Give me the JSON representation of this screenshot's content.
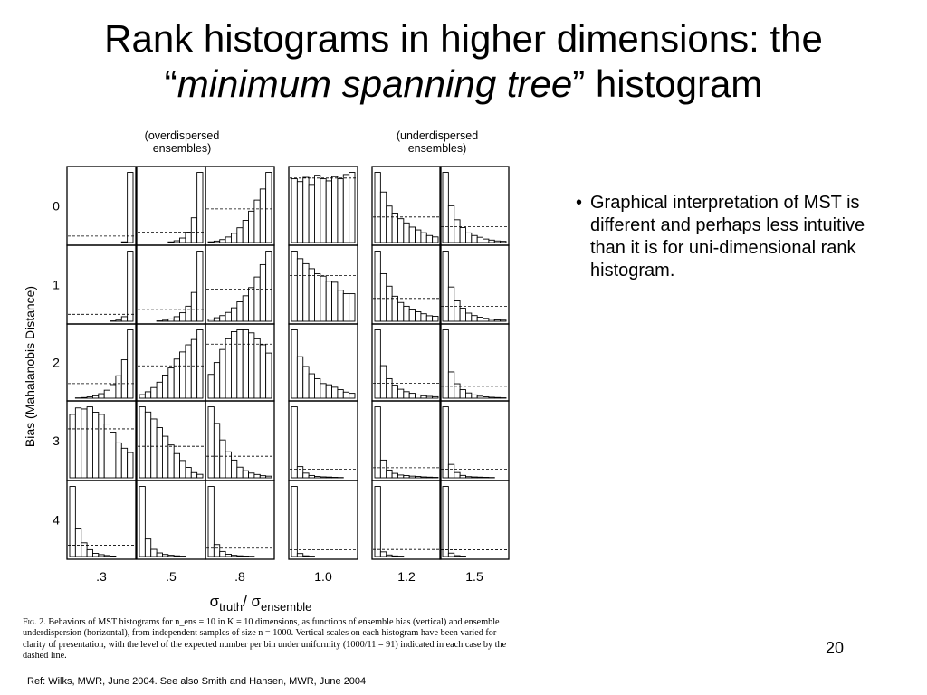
{
  "slide": {
    "title_line1": "Rank histograms in higher dimensions: the",
    "title_open_quote": "“",
    "title_italic": "minimum spanning tree",
    "title_close": "” histogram",
    "bullets": [
      "Graphical interpretation of MST is different and perhaps less intuitive than it is for uni-dimensional rank histogram."
    ],
    "page_number": "20",
    "reference": "Ref: Wilks, MWR, June 2004.  See also Smith and Hansen, MWR, June 2004"
  },
  "figure": {
    "label_overdispersed_1": "(overdispersed",
    "label_overdispersed_2": "ensembles)",
    "label_underdispersed_1": "(underdispersed",
    "label_underdispersed_2": "ensembles)",
    "ylabel": "Bias (Mahalanobis Distance)",
    "xlabel_sigma1": "σ",
    "xlabel_sub1": "truth",
    "xlabel_slash": "/ ",
    "xlabel_sigma2": "σ",
    "xlabel_sub2": "ensemble",
    "caption_fig": "Fig. 2.",
    "caption_text": " Behaviors of MST histograms for n_ens = 10 in K = 10 dimensions, as functions of ensemble bias (vertical) and ensemble underdispersion (horizontal), from independent samples of size n = 1000. Vertical scales on each histogram have been varied for clarity of presentation, with the level of the expected number per bin under uniformity (1000/11 = 91) indicated in each case by the dashed line."
  },
  "chart_data": {
    "type": "bar",
    "description_of_grid": "5 rows (bias) x 6 columns (dispersion ratio); each cell is an 11-bin MST rank histogram",
    "rows": [
      "0",
      "1",
      "2",
      "3",
      "4"
    ],
    "columns": [
      ".3",
      ".5",
      ".8",
      "1.0",
      "1.2",
      "1.5"
    ],
    "bins": 11,
    "expected_per_bin": 91,
    "panels": [
      [
        {
          "values": [
            0,
            0,
            0,
            0,
            0,
            0,
            0,
            0,
            2,
            10,
            988
          ],
          "dashed": 91
        },
        {
          "values": [
            0,
            0,
            0,
            0,
            2,
            6,
            16,
            40,
            92,
            220,
            624
          ],
          "dashed": 91
        },
        {
          "values": [
            2,
            4,
            8,
            15,
            25,
            40,
            60,
            85,
            115,
            145,
            190
          ],
          "dashed": 91
        },
        {
          "values": [
            90,
            86,
            92,
            82,
            95,
            90,
            87,
            93,
            90,
            96,
            99
          ],
          "dashed": 91
        },
        {
          "values": [
            250,
            180,
            130,
            105,
            85,
            70,
            55,
            45,
            35,
            25,
            20
          ],
          "dashed": 91
        },
        {
          "values": [
            400,
            210,
            130,
            85,
            55,
            40,
            30,
            20,
            14,
            9,
            7
          ],
          "dashed": 91
        }
      ],
      [
        {
          "values": [
            0,
            0,
            0,
            0,
            0,
            1,
            2,
            5,
            15,
            60,
            917
          ],
          "dashed": 91
        },
        {
          "values": [
            0,
            0,
            1,
            3,
            8,
            18,
            35,
            65,
            115,
            220,
            535
          ],
          "dashed": 91
        },
        {
          "values": [
            6,
            10,
            16,
            25,
            38,
            55,
            72,
            95,
            125,
            160,
            198
          ],
          "dashed": 91
        },
        {
          "values": [
            140,
            125,
            115,
            105,
            95,
            90,
            80,
            78,
            62,
            55,
            55
          ],
          "dashed": 91
        },
        {
          "values": [
            280,
            190,
            140,
            100,
            75,
            60,
            45,
            38,
            30,
            22,
            20
          ],
          "dashed": 91
        },
        {
          "values": [
            430,
            210,
            125,
            80,
            50,
            35,
            25,
            18,
            12,
            8,
            7
          ],
          "dashed": 91
        }
      ],
      [
        {
          "values": [
            1,
            2,
            4,
            8,
            15,
            28,
            50,
            85,
            140,
            240,
            427
          ],
          "dashed": 91
        },
        {
          "values": [
            10,
            18,
            30,
            45,
            65,
            85,
            110,
            130,
            150,
            165,
            192
          ],
          "dashed": 91
        },
        {
          "values": [
            40,
            60,
            82,
            100,
            112,
            115,
            115,
            110,
            100,
            90,
            76
          ],
          "dashed": 91
        },
        {
          "values": [
            280,
            170,
            130,
            100,
            80,
            60,
            55,
            45,
            35,
            25,
            20
          ],
          "dashed": 91
        },
        {
          "values": [
            420,
            200,
            120,
            80,
            55,
            40,
            30,
            20,
            15,
            11,
            9
          ],
          "dashed": 91
        },
        {
          "values": [
            520,
            200,
            110,
            65,
            40,
            25,
            15,
            10,
            7,
            5,
            3
          ],
          "dashed": 91
        }
      ],
      [
        {
          "values": [
            118,
            130,
            128,
            132,
            122,
            118,
            100,
            85,
            65,
            55,
            47
          ],
          "dashed": 91
        },
        {
          "values": [
            205,
            190,
            170,
            145,
            120,
            95,
            70,
            50,
            30,
            15,
            10
          ],
          "dashed": 91
        },
        {
          "values": [
            300,
            230,
            160,
            110,
            75,
            45,
            30,
            20,
            14,
            9,
            7
          ],
          "dashed": 91
        },
        {
          "values": [
            760,
            120,
            50,
            25,
            15,
            10,
            8,
            5,
            3,
            2,
            2
          ],
          "dashed": 91
        },
        {
          "values": [
            640,
            160,
            70,
            40,
            25,
            20,
            15,
            12,
            8,
            6,
            4
          ],
          "dashed": 91
        },
        {
          "values": [
            740,
            140,
            55,
            25,
            12,
            9,
            7,
            5,
            3,
            2,
            2
          ],
          "dashed": 91
        }
      ],
      [
        {
          "values": [
            560,
            220,
            110,
            55,
            25,
            15,
            8,
            4,
            2,
            1,
            0
          ],
          "dashed": 91
        },
        {
          "values": [
            680,
            170,
            70,
            35,
            20,
            12,
            7,
            4,
            2,
            0,
            0
          ],
          "dashed": 91
        },
        {
          "values": [
            760,
            130,
            55,
            25,
            13,
            8,
            5,
            3,
            1,
            0,
            0
          ],
          "dashed": 91
        },
        {
          "values": [
            940,
            40,
            10,
            5,
            2,
            1,
            1,
            1,
            0,
            0,
            0
          ],
          "dashed": 91
        },
        {
          "values": [
            900,
            60,
            20,
            8,
            5,
            3,
            2,
            1,
            1,
            0,
            0
          ],
          "dashed": 91
        },
        {
          "values": [
            930,
            45,
            12,
            6,
            3,
            2,
            1,
            1,
            0,
            0,
            0
          ],
          "dashed": 91
        }
      ]
    ]
  }
}
